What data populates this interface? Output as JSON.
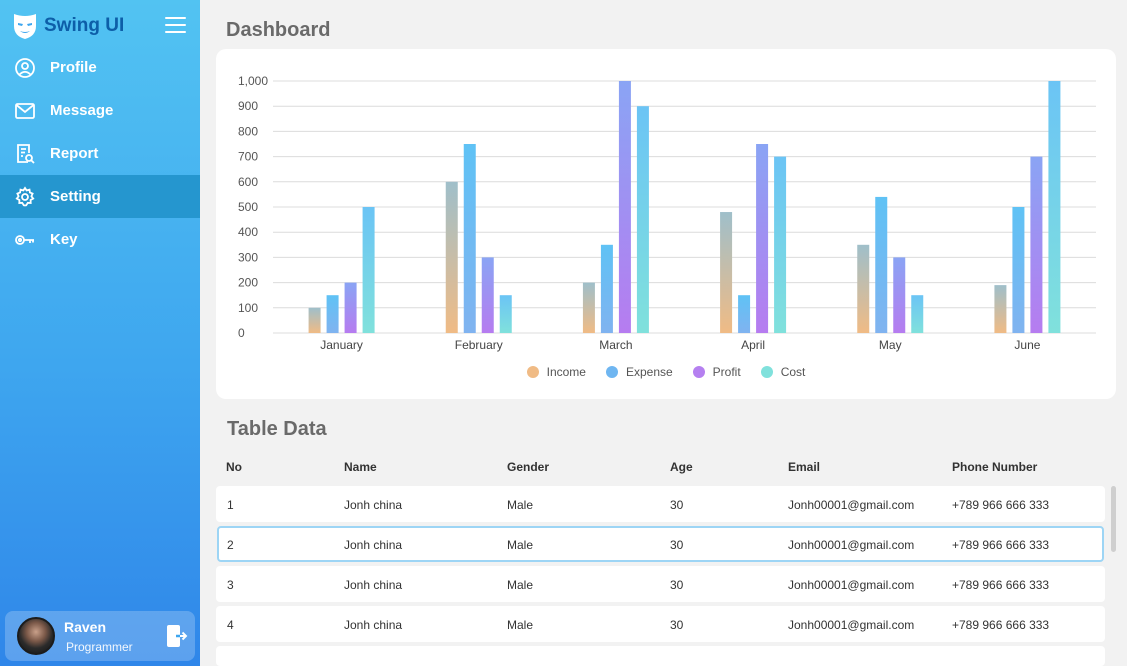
{
  "brand": {
    "name": "Swing UI"
  },
  "menu": [
    {
      "label": "Profile",
      "icon": "user-circle-icon"
    },
    {
      "label": "Message",
      "icon": "envelope-icon"
    },
    {
      "label": "Report",
      "icon": "report-icon"
    },
    {
      "label": "Setting",
      "icon": "gear-icon",
      "active": true
    },
    {
      "label": "Key",
      "icon": "key-icon"
    }
  ],
  "user": {
    "name": "Raven",
    "role": "Programmer"
  },
  "dashboard": {
    "title": "Dashboard"
  },
  "chart_data": {
    "type": "bar",
    "categories": [
      "January",
      "February",
      "March",
      "April",
      "May",
      "June"
    ],
    "series": [
      {
        "name": "Income",
        "values": [
          100,
          600,
          200,
          480,
          350,
          190
        ],
        "color_top": "#9fbfca",
        "color_bottom": "#f0bb85"
      },
      {
        "name": "Expense",
        "values": [
          150,
          750,
          350,
          150,
          540,
          500
        ],
        "color_top": "#5fc2f5",
        "color_bottom": "#80b3f0"
      },
      {
        "name": "Profit",
        "values": [
          200,
          300,
          1000,
          750,
          300,
          700
        ],
        "color_top": "#8aa4f4",
        "color_bottom": "#b67cf0"
      },
      {
        "name": "Cost",
        "values": [
          500,
          150,
          900,
          700,
          150,
          1000
        ],
        "color_top": "#6bc4f5",
        "color_bottom": "#80e1dc"
      }
    ],
    "legend_colors": [
      "#f0bb85",
      "#6fb6f1",
      "#b580f0",
      "#80e1dc"
    ],
    "ylim": [
      0,
      1000
    ],
    "yticks": [
      "0",
      "100",
      "200",
      "300",
      "400",
      "500",
      "600",
      "700",
      "800",
      "900",
      "1,000"
    ],
    "grid": true,
    "legend_position": "bottom"
  },
  "table": {
    "title": "Table Data",
    "columns": [
      "No",
      "Name",
      "Gender",
      "Age",
      "Email",
      "Phone Number"
    ],
    "rows": [
      {
        "no": "1",
        "name": "Jonh china",
        "gender": "Male",
        "age": "30",
        "email": "Jonh00001@gmail.com",
        "phone": "+789 966 666 333"
      },
      {
        "no": "2",
        "name": "Jonh china",
        "gender": "Male",
        "age": "30",
        "email": "Jonh00001@gmail.com",
        "phone": "+789 966 666 333",
        "selected": true
      },
      {
        "no": "3",
        "name": "Jonh china",
        "gender": "Male",
        "age": "30",
        "email": "Jonh00001@gmail.com",
        "phone": "+789 966 666 333"
      },
      {
        "no": "4",
        "name": "Jonh china",
        "gender": "Male",
        "age": "30",
        "email": "Jonh00001@gmail.com",
        "phone": "+789 966 666 333"
      }
    ]
  }
}
